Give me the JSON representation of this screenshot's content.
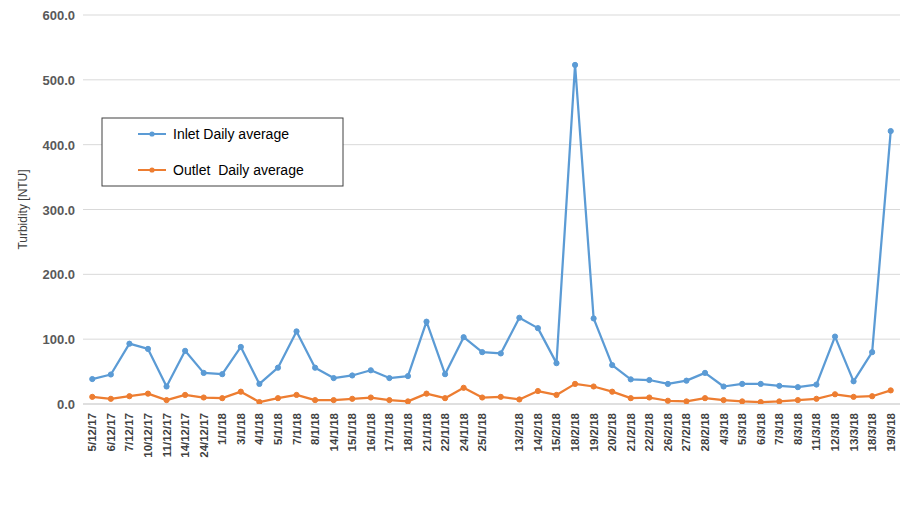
{
  "chart_data": {
    "type": "line",
    "y_label": "Turbidity [NTU]",
    "categories": [
      "5/12/17",
      "6/12/17",
      "7/12/17",
      "10/12/17",
      "11/12/17",
      "14/12/17",
      "24/12/17",
      "1/1/18",
      "3/1/18",
      "4/1/18",
      "5/1/18",
      "7/1/18",
      "8/1/18",
      "14/1/18",
      "15/1/18",
      "16/1/18",
      "17/1/18",
      "18/1/18",
      "21/1/18",
      "22/1/18",
      "24/1/18",
      "25/1/18",
      null,
      "13/2/18",
      "14/2/18",
      "15/2/18",
      "18/2/18",
      "19/2/18",
      "20/2/18",
      "21/2/18",
      "22/2/18",
      "26/2/18",
      "27/2/18",
      "28/2/18",
      "4/3/18",
      "5/3/18",
      "6/3/18",
      "7/3/18",
      "8/3/18",
      "11/3/18",
      "12/3/18",
      "13/3/18",
      "18/3/18",
      "19/3/18"
    ],
    "series": [
      {
        "name": "Inlet Daily average",
        "color": "#5b9bd5",
        "marker": "circle",
        "values": [
          38.5,
          45.5,
          93,
          85,
          27,
          82,
          48,
          46,
          88,
          31,
          56,
          112,
          56,
          40,
          44,
          52,
          40,
          43,
          127,
          46,
          103,
          80,
          78,
          133,
          117,
          63,
          523,
          132,
          60,
          38,
          37,
          31,
          36,
          48,
          27,
          31,
          31,
          28,
          26,
          30,
          104,
          35,
          80,
          421
        ]
      },
      {
        "name": "Outlet  Daily average",
        "color": "#ed7d31",
        "marker": "circle",
        "values": [
          11,
          8,
          12,
          16,
          6,
          14,
          10,
          9,
          19,
          3,
          9,
          14,
          6,
          6,
          8,
          10,
          6,
          4,
          16,
          9,
          25,
          10,
          11,
          7,
          20,
          14,
          31,
          27,
          19,
          9,
          10,
          5,
          4,
          9,
          6,
          4,
          3,
          4,
          6,
          8,
          15,
          11,
          12,
          21
        ]
      }
    ],
    "ylim": [
      0,
      600
    ],
    "yticks": [
      {
        "value": 0,
        "label": "0.0"
      },
      {
        "value": 100,
        "label": "100.0"
      },
      {
        "value": 200,
        "label": "200.0"
      },
      {
        "value": 300,
        "label": "300.0"
      },
      {
        "value": 400,
        "label": "400.0"
      },
      {
        "value": 500,
        "label": "500.0"
      },
      {
        "value": 600,
        "label": "600.0"
      }
    ],
    "grid": true,
    "legend": "upper-left"
  }
}
